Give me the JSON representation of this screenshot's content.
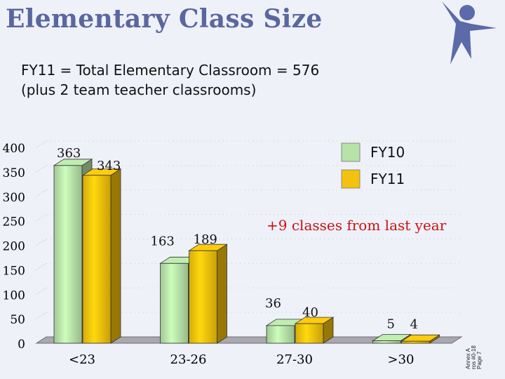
{
  "title": "Elementary Class Size",
  "subtitle_lines": [
    "FY11 = Total Elementary Classroom = 576",
    "(plus 2 team teacher classrooms)"
  ],
  "logo_icon": "person-star-icon",
  "side_note_lines": [
    "Annex A",
    "ros #0-18",
    "Page 7"
  ],
  "chart_data": {
    "type": "bar",
    "categories": [
      "<23",
      "23-26",
      "27-30",
      ">30"
    ],
    "series": [
      {
        "name": "FY10",
        "values": [
          363,
          163,
          36,
          5
        ],
        "color": "#b7e2a8",
        "labels": [
          "363",
          "163",
          "36",
          "5"
        ]
      },
      {
        "name": "FY11",
        "values": [
          343,
          189,
          40,
          4
        ],
        "color": "#f3c20c",
        "labels": [
          "343",
          "189",
          "40",
          "4"
        ]
      }
    ],
    "ylim": [
      0,
      400
    ],
    "yticks": [
      "0",
      "50",
      "100",
      "150",
      "200",
      "250",
      "300",
      "350",
      "400"
    ],
    "annotation": "+9 classes from last year",
    "annotation_color": "#cc1111",
    "legend_position": "top-right",
    "style": "3d-clustered-column"
  }
}
